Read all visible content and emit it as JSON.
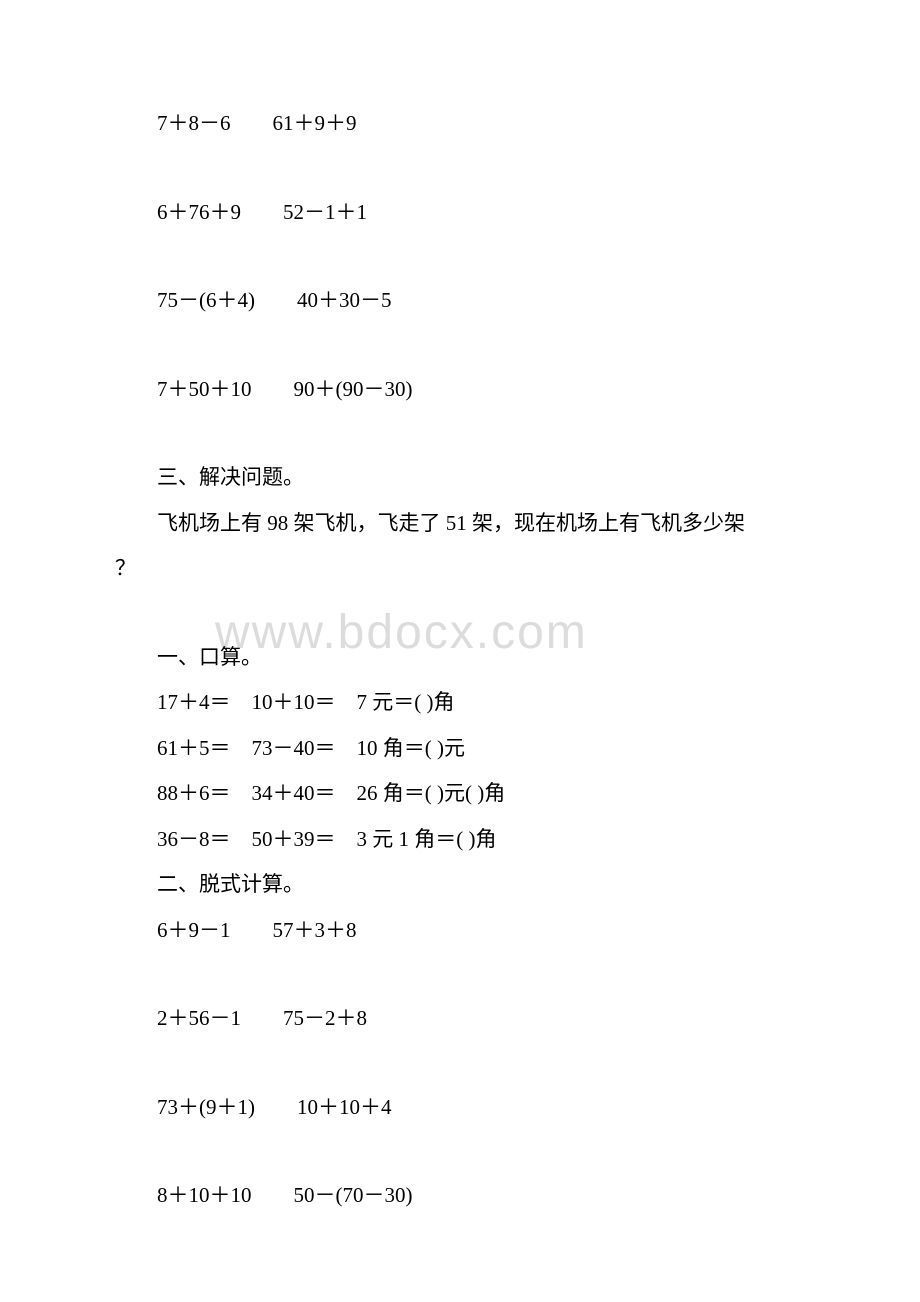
{
  "watermark": "www.bdocx.com",
  "lines": [
    {
      "text": "7＋8－6　　61＋9＋9",
      "indent": true,
      "spacerAfter": true
    },
    {
      "text": "6＋76＋9　　52－1＋1",
      "indent": true,
      "spacerAfter": true
    },
    {
      "text": "75－(6＋4)　　40＋30－5",
      "indent": true,
      "spacerAfter": true
    },
    {
      "text": "7＋50＋10　　90＋(90－30)",
      "indent": true,
      "spacerAfter": true
    },
    {
      "text": "三、解决问题。",
      "indent": true,
      "spacerAfter": false
    },
    {
      "text": "飞机场上有 98 架飞机，飞走了 51 架，现在机场上有飞机多少架",
      "indent": true,
      "spacerAfter": false
    },
    {
      "text": "？",
      "indent": false,
      "spacerAfter": true
    },
    {
      "text": "一、口算。",
      "indent": true,
      "spacerAfter": false
    },
    {
      "text": "17＋4＝　10＋10＝　7 元＝( )角",
      "indent": true,
      "spacerAfter": false
    },
    {
      "text": "61＋5＝　73－40＝　10 角＝( )元",
      "indent": true,
      "spacerAfter": false
    },
    {
      "text": "88＋6＝　34＋40＝　26 角＝( )元( )角",
      "indent": true,
      "spacerAfter": false
    },
    {
      "text": "36－8＝　50＋39＝　3 元 1 角＝( )角",
      "indent": true,
      "spacerAfter": false
    },
    {
      "text": "二、脱式计算。",
      "indent": true,
      "spacerAfter": false
    },
    {
      "text": "6＋9－1　　57＋3＋8",
      "indent": true,
      "spacerAfter": true
    },
    {
      "text": "2＋56－1　　75－2＋8",
      "indent": true,
      "spacerAfter": true
    },
    {
      "text": "73＋(9＋1)　　10＋10＋4",
      "indent": true,
      "spacerAfter": true
    },
    {
      "text": "8＋10＋10　　50－(70－30)",
      "indent": true,
      "spacerAfter": false
    }
  ]
}
